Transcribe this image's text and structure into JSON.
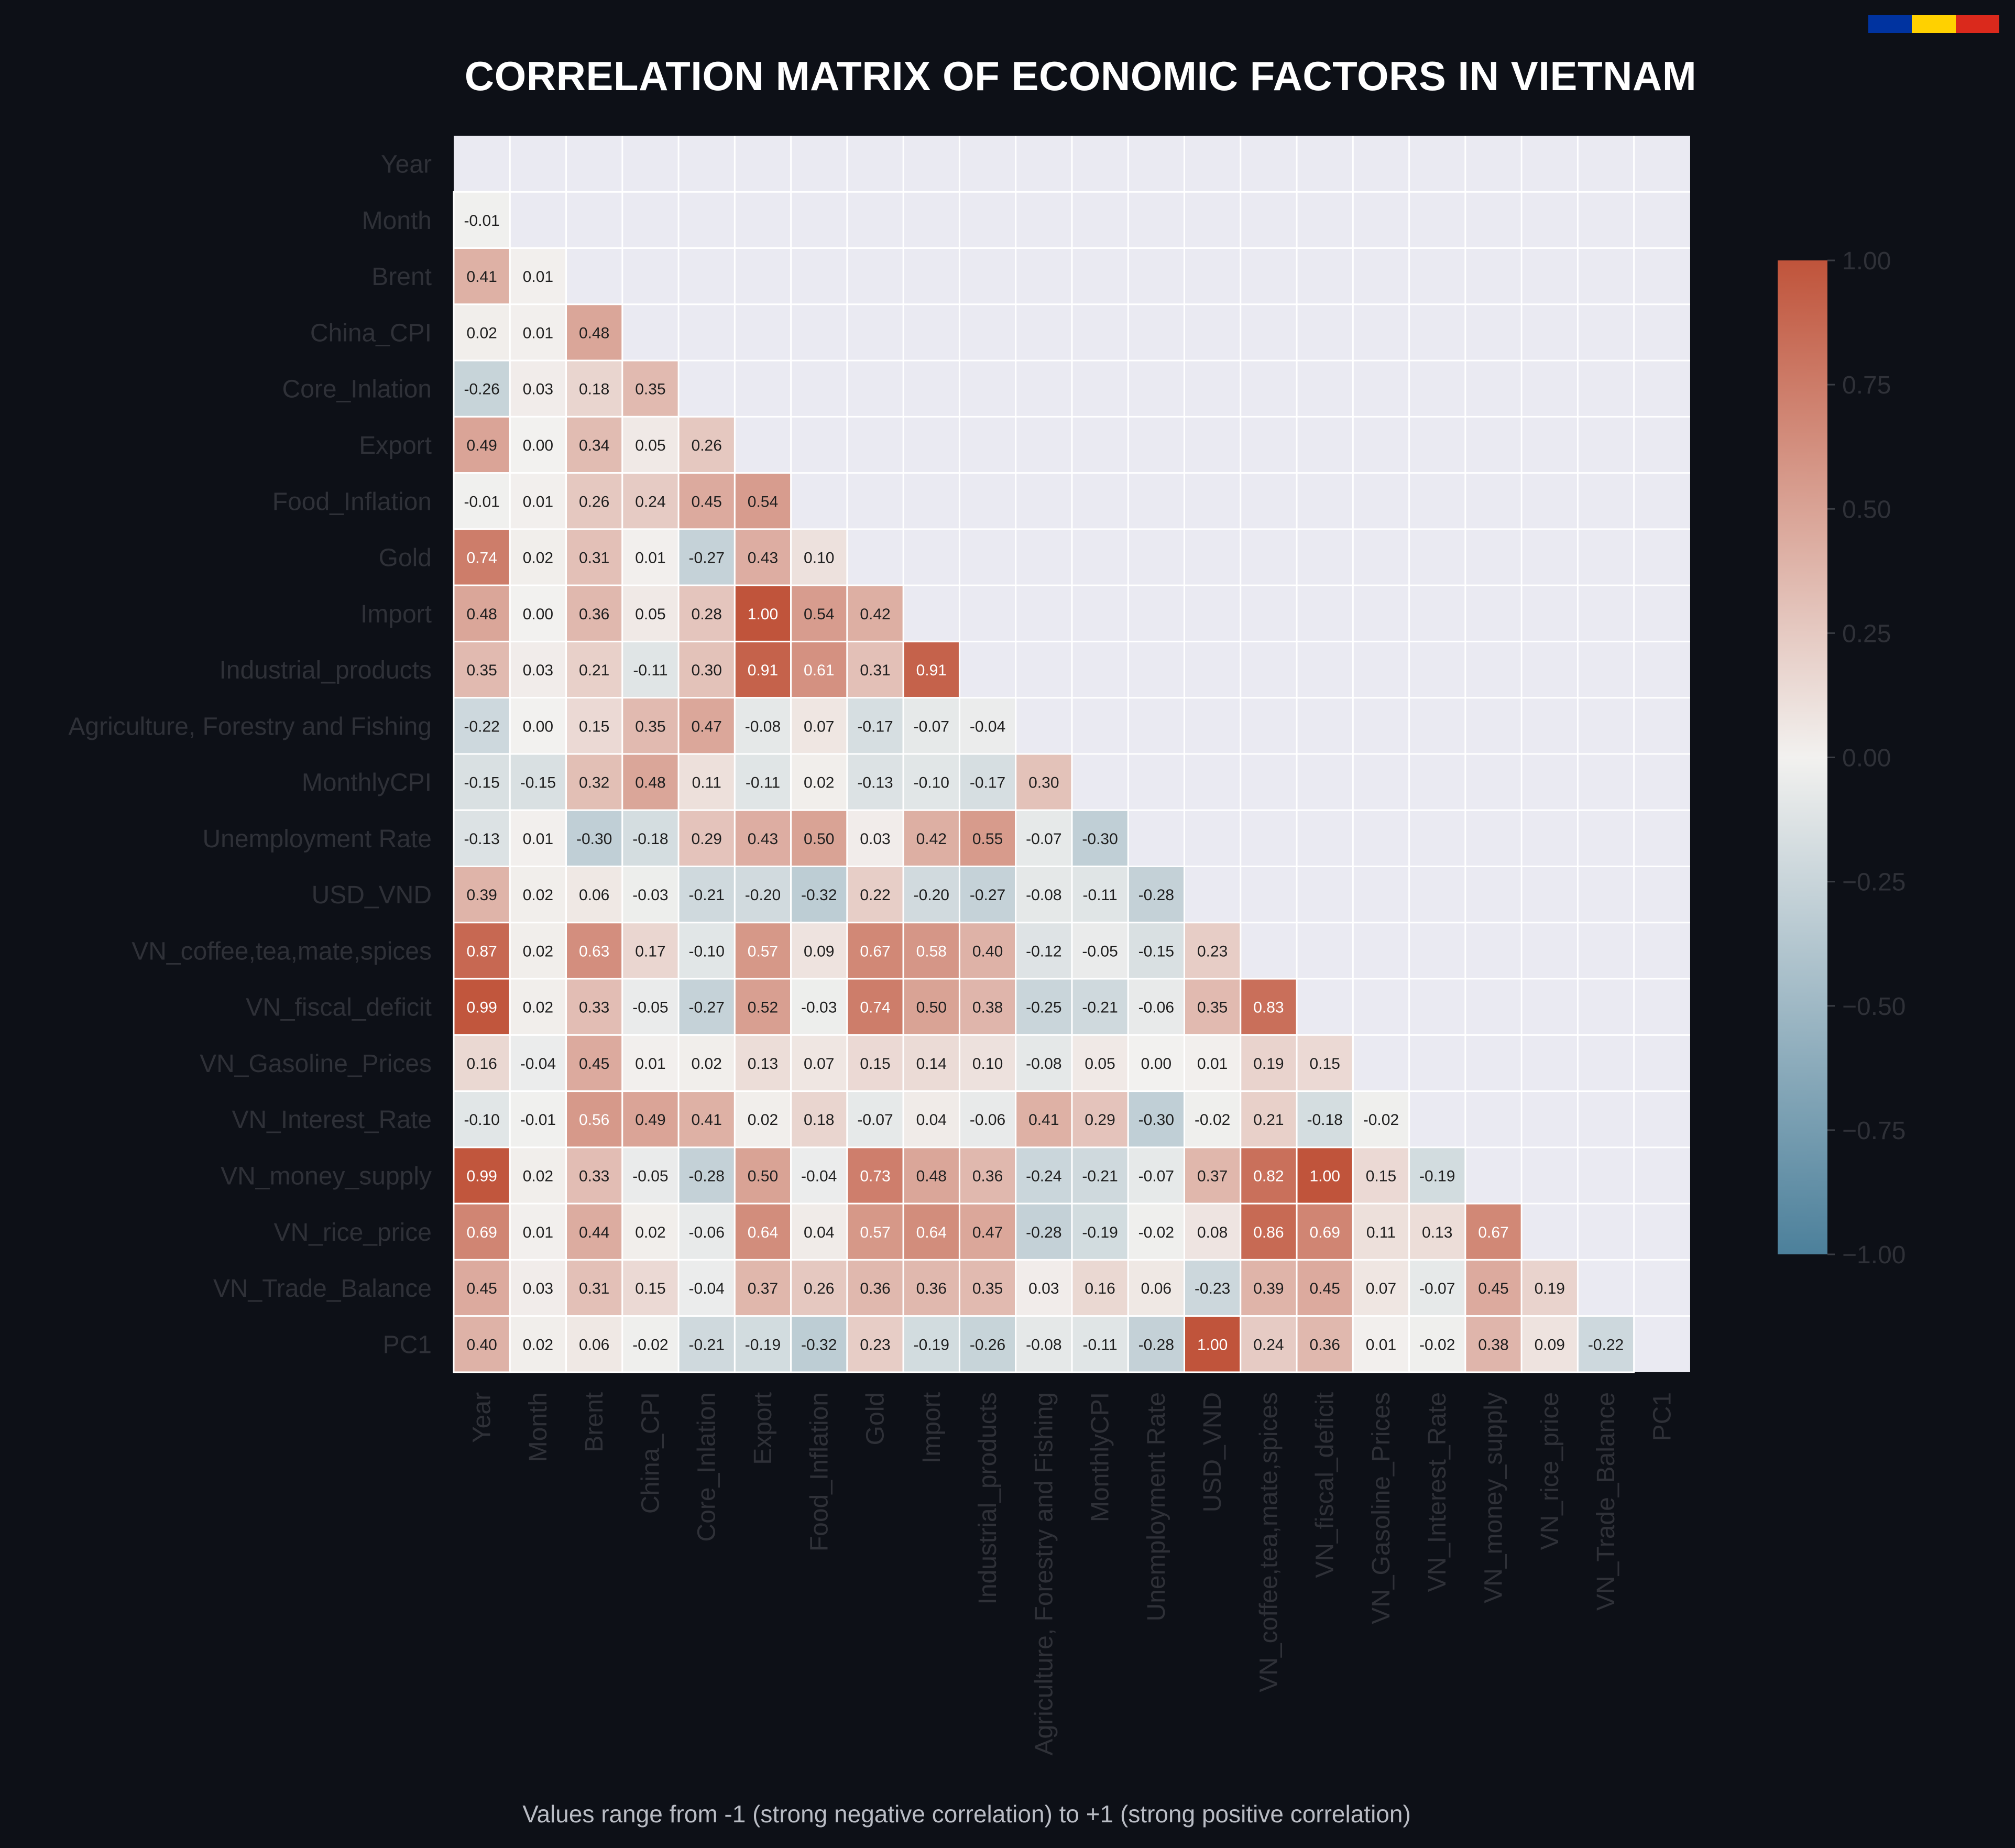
{
  "flag_colors": [
    "#0033a0",
    "#ffd100",
    "#da291c"
  ],
  "chart_data": {
    "type": "heatmap",
    "title": "CORRELATION MATRIX OF ECONOMIC FACTORS IN VIETNAM",
    "caption": "Values range from -1 (strong negative correlation) to +1 (strong positive correlation)",
    "variables": [
      "Year",
      "Month",
      "Brent",
      "China_CPI",
      "Core_Inlation",
      "Export",
      "Food_Inflation",
      "Gold",
      "Import",
      "Industrial_products",
      "Agriculture, Forestry and Fishing",
      "MonthlyCPI",
      "Unemployment Rate",
      "USD_VND",
      "VN_coffee,tea,mate,spices",
      "VN_fiscal_deficit",
      "VN_Gasoline_Prices",
      "VN_Interest_Rate",
      "VN_money_supply",
      "VN_rice_price",
      "VN_Trade_Balance",
      "PC1"
    ],
    "mask": "upper triangle and diagonal hidden",
    "lower_triangle": [
      [],
      [
        -0.01
      ],
      [
        0.41,
        0.01
      ],
      [
        0.02,
        0.01,
        0.48
      ],
      [
        -0.26,
        0.03,
        0.18,
        0.35
      ],
      [
        0.49,
        0.0,
        0.34,
        0.05,
        0.26
      ],
      [
        -0.01,
        0.01,
        0.26,
        0.24,
        0.45,
        0.54
      ],
      [
        0.74,
        0.02,
        0.31,
        0.01,
        -0.27,
        0.43,
        0.1
      ],
      [
        0.48,
        0.0,
        0.36,
        0.05,
        0.28,
        1.0,
        0.54,
        0.42
      ],
      [
        0.35,
        0.03,
        0.21,
        -0.11,
        0.3,
        0.91,
        0.61,
        0.31,
        0.91
      ],
      [
        -0.22,
        0.0,
        0.15,
        0.35,
        0.47,
        -0.08,
        0.07,
        -0.17,
        -0.07,
        -0.04
      ],
      [
        -0.15,
        -0.15,
        0.32,
        0.48,
        0.11,
        -0.11,
        0.02,
        -0.13,
        -0.1,
        -0.17,
        0.3
      ],
      [
        -0.13,
        0.01,
        -0.3,
        -0.18,
        0.29,
        0.43,
        0.5,
        0.03,
        0.42,
        0.55,
        -0.07,
        -0.3
      ],
      [
        0.39,
        0.02,
        0.06,
        -0.03,
        -0.21,
        -0.2,
        -0.32,
        0.22,
        -0.2,
        -0.27,
        -0.08,
        -0.11,
        -0.28
      ],
      [
        0.87,
        0.02,
        0.63,
        0.17,
        -0.1,
        0.57,
        0.09,
        0.67,
        0.58,
        0.4,
        -0.12,
        -0.05,
        -0.15,
        0.23
      ],
      [
        0.99,
        0.02,
        0.33,
        -0.05,
        -0.27,
        0.52,
        -0.03,
        0.74,
        0.5,
        0.38,
        -0.25,
        -0.21,
        -0.06,
        0.35,
        0.83
      ],
      [
        0.16,
        -0.04,
        0.45,
        0.01,
        0.02,
        0.13,
        0.07,
        0.15,
        0.14,
        0.1,
        -0.08,
        0.05,
        0.0,
        0.01,
        0.19,
        0.15
      ],
      [
        -0.1,
        -0.01,
        0.56,
        0.49,
        0.41,
        0.02,
        0.18,
        -0.07,
        0.04,
        -0.06,
        0.41,
        0.29,
        -0.3,
        -0.02,
        0.21,
        -0.18,
        -0.02
      ],
      [
        0.99,
        0.02,
        0.33,
        -0.05,
        -0.28,
        0.5,
        -0.04,
        0.73,
        0.48,
        0.36,
        -0.24,
        -0.21,
        -0.07,
        0.37,
        0.82,
        1.0,
        0.15,
        -0.19
      ],
      [
        0.69,
        0.01,
        0.44,
        0.02,
        -0.06,
        0.64,
        0.04,
        0.57,
        0.64,
        0.47,
        -0.28,
        -0.19,
        -0.02,
        0.08,
        0.86,
        0.69,
        0.11,
        0.13,
        0.67
      ],
      [
        0.45,
        0.03,
        0.31,
        0.15,
        -0.04,
        0.37,
        0.26,
        0.36,
        0.36,
        0.35,
        0.03,
        0.16,
        0.06,
        -0.23,
        0.39,
        0.45,
        0.07,
        -0.07,
        0.45,
        0.19
      ],
      [
        0.4,
        0.02,
        0.06,
        -0.02,
        -0.21,
        -0.19,
        -0.32,
        0.23,
        -0.19,
        -0.26,
        -0.08,
        -0.11,
        -0.28,
        1.0,
        0.24,
        0.36,
        0.01,
        -0.02,
        0.38,
        0.09,
        -0.22
      ]
    ],
    "value_format": "2 decimals",
    "colormap": "diverging blue-white-red",
    "color_low": "#4c809b",
    "color_mid": "#f2f1ef",
    "color_high": "#c0543b",
    "vmin": -1,
    "vmax": 1,
    "colorbar_ticks": [
      "1.00",
      "0.75",
      "0.50",
      "0.25",
      "0.00",
      "−0.25",
      "−0.50",
      "−0.75",
      "−1.00"
    ],
    "colorbar_values": [
      1,
      0.75,
      0.5,
      0.25,
      0,
      -0.25,
      -0.5,
      -0.75,
      -1
    ],
    "grid": true,
    "background_color": "#0d1017",
    "panel_color": "#eaeaf2",
    "label_color": "#2f3138"
  }
}
